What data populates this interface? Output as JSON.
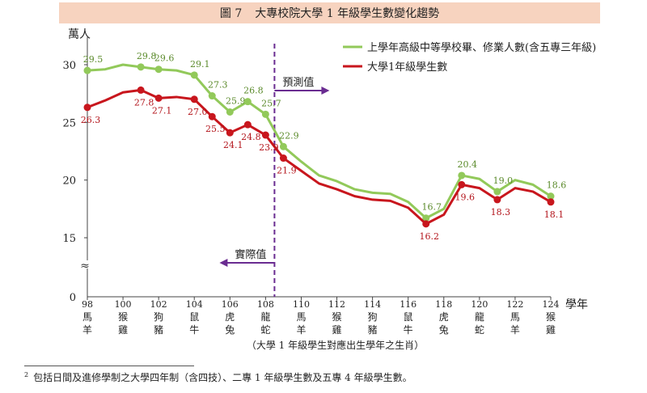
{
  "figure": {
    "number": "圖 7",
    "title": "大專校院大學 1 年級學生數變化趨勢"
  },
  "chart_data": {
    "type": "line",
    "ylabel": "萬人",
    "xlabel": "學年",
    "x_caption": "（大學 1 年級學生對應出生學年之生肖）",
    "x": [
      98,
      99,
      100,
      101,
      102,
      103,
      104,
      105,
      106,
      107,
      108,
      109,
      110,
      111,
      112,
      113,
      114,
      115,
      116,
      117,
      118,
      119,
      120,
      121,
      122,
      123,
      124
    ],
    "x_tick_values": [
      98,
      100,
      102,
      104,
      106,
      108,
      110,
      112,
      114,
      116,
      118,
      120,
      122,
      124
    ],
    "zodiac_labels": [
      [
        "馬",
        "羊"
      ],
      [
        "猴",
        "雞"
      ],
      [
        "狗",
        "豬"
      ],
      [
        "鼠",
        "牛"
      ],
      [
        "虎",
        "兔"
      ],
      [
        "龍",
        "蛇"
      ],
      [
        "馬",
        "羊"
      ],
      [
        "猴",
        "雞"
      ],
      [
        "狗",
        "豬"
      ],
      [
        "鼠",
        "牛"
      ],
      [
        "虎",
        "兔"
      ],
      [
        "龍",
        "蛇"
      ],
      [
        "馬",
        "羊"
      ],
      [
        "猴",
        "雞"
      ]
    ],
    "y_ticks": [
      15,
      20,
      25,
      30
    ],
    "y_zero_label": "0",
    "axis_break_symbol": "≈",
    "ylim": [
      13,
      32
    ],
    "divider_x": 108.5,
    "forecast_label": "預測值",
    "actual_label": "實際值",
    "legend_position": "top-right",
    "series": [
      {
        "name": "上學年高級中等學校畢、修業人數(含五專三年級)",
        "color": "#92c95a",
        "values": [
          29.5,
          29.6,
          30.0,
          29.8,
          29.6,
          29.5,
          29.1,
          27.3,
          25.9,
          26.8,
          25.7,
          22.9,
          21.6,
          20.4,
          19.9,
          19.2,
          18.9,
          18.8,
          18.1,
          16.7,
          17.5,
          20.4,
          20.1,
          19.0,
          20.0,
          19.6,
          18.6
        ],
        "labels": {
          "98": "29.5",
          "101": "29.8",
          "102": "29.6",
          "104": "29.1",
          "105": "27.3",
          "106": "25.9",
          "107": "26.8",
          "108": "25.7",
          "109": "22.9",
          "117": "16.7",
          "119": "20.4",
          "121": "19.0",
          "124": "18.6"
        }
      },
      {
        "name": "大學1年級學生數",
        "color": "#c8161d",
        "values": [
          26.3,
          26.9,
          27.6,
          27.8,
          27.1,
          27.2,
          27.0,
          25.5,
          24.1,
          24.8,
          23.9,
          21.9,
          20.8,
          19.7,
          19.2,
          18.6,
          18.3,
          18.2,
          17.6,
          16.2,
          17.0,
          19.6,
          19.3,
          18.3,
          19.3,
          19.0,
          18.1
        ],
        "labels": {
          "98": "26.3",
          "101": "27.8",
          "102": "27.1",
          "104": "27.0",
          "105": "25.5",
          "106": "24.1",
          "107": "24.8",
          "108": "23.9",
          "109": "21.9",
          "117": "16.2",
          "119": "19.6",
          "121": "18.3",
          "124": "18.1"
        }
      }
    ]
  },
  "footnote": {
    "marker": "2",
    "text": "包括日間及進修學制之大學四年制（含四技）、二專 1 年級學生數及五專 4 年級學生數。"
  }
}
